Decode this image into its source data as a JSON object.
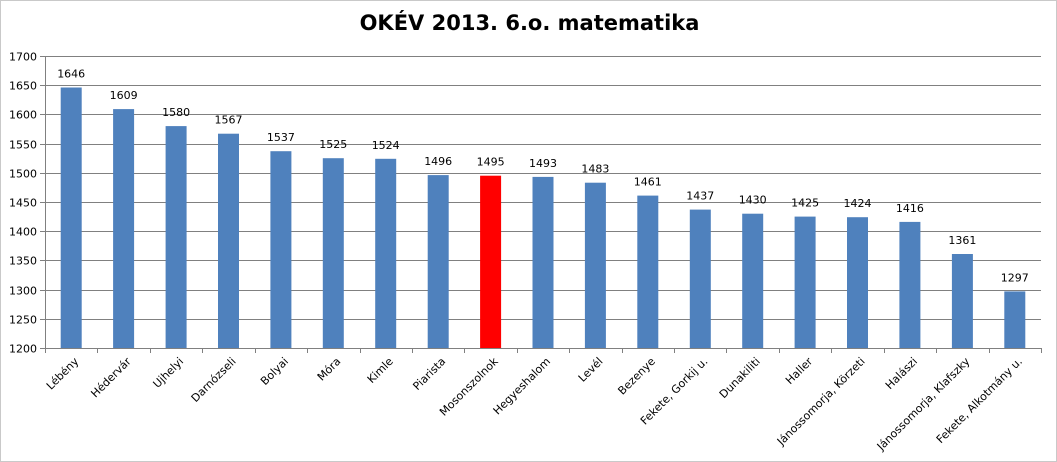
{
  "chart_data": {
    "type": "bar",
    "title": "OKÉV 2013. 6.o. matematika",
    "xlabel": "",
    "ylabel": "",
    "ylim": [
      1200,
      1700
    ],
    "yticks": [
      1200,
      1250,
      1300,
      1350,
      1400,
      1450,
      1500,
      1550,
      1600,
      1650,
      1700
    ],
    "grid": true,
    "legend": "none",
    "categories": [
      "Lébény",
      "Hédervár",
      "Ujhelyi",
      "Darnózseli",
      "Bolyai",
      "Móra",
      "Kimle",
      "Piarista",
      "Mosonszolnok",
      "Hegyeshalom",
      "Levél",
      "Bezenye",
      "Fekete, Gorkij u.",
      "Dunakiliti",
      "Haller",
      "Jánossomorja, Körzeti",
      "Halászi",
      "Jánossomorja, Klafszky",
      "Fekete, Alkotmány u."
    ],
    "values": [
      1646,
      1609,
      1580,
      1567,
      1537,
      1525,
      1524,
      1496,
      1495,
      1493,
      1483,
      1461,
      1437,
      1430,
      1425,
      1424,
      1416,
      1361,
      1297
    ],
    "highlight_category": "Mosonszolnok",
    "colors": {
      "bar": "#4f81bd",
      "highlight": "#ff0000",
      "grid": "#808080",
      "axis": "#808080"
    }
  }
}
